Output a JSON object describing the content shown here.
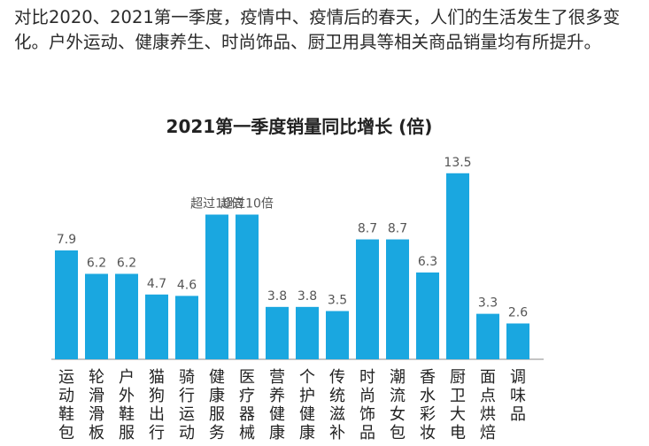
{
  "intro": "对比2020、2021第一季度，疫情中、疫情后的春天，人们的生活发生了很多变化。户外运动、健康养生、时尚饰品、厨卫用具等相关商品销量均有所提升。",
  "chart_data": {
    "type": "bar",
    "title": "2021第一季度销量同比增长 (倍)",
    "xlabel": "",
    "ylabel": "",
    "ylim": [
      0,
      14
    ],
    "grid": false,
    "bar_color": "#1aa7e0",
    "categories": [
      "运动鞋包",
      "轮滑滑板",
      "户外鞋服",
      "猫狗出行",
      "骑行运动",
      "健康服务",
      "医疗器械",
      "营养健康",
      "个护健康",
      "传统滋补",
      "时尚饰品",
      "潮流女包",
      "香水彩妆",
      "厨卫大电",
      "面点烘焙",
      "调味品"
    ],
    "values": [
      7.9,
      6.2,
      6.2,
      4.7,
      4.6,
      10.5,
      10.5,
      3.8,
      3.8,
      3.5,
      8.7,
      8.7,
      6.3,
      13.5,
      3.3,
      2.6
    ],
    "labels": [
      "7.9",
      "6.2",
      "6.2",
      "4.7",
      "4.6",
      "超过10倍",
      "超过10倍",
      "3.8",
      "3.8",
      "3.5",
      "8.7",
      "8.7",
      "6.3",
      "13.5",
      "3.3",
      "2.6"
    ]
  }
}
